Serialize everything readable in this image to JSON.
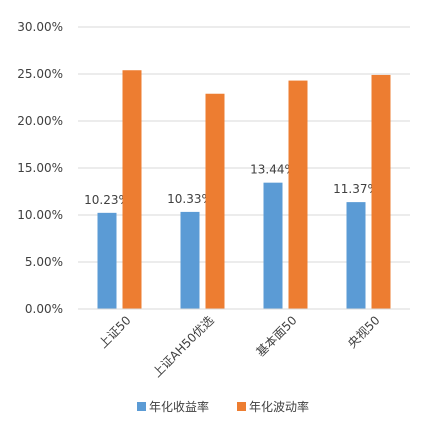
{
  "chart_data": {
    "type": "bar",
    "categories": [
      "上证50",
      "上证AH50优选",
      "基本面50",
      "央视50"
    ],
    "series": [
      {
        "name": "年化收益率",
        "values": [
          10.23,
          10.33,
          13.44,
          11.37
        ],
        "color": "#5B9BD5",
        "labels": [
          "10.23%",
          "10.33%",
          "13.44%",
          "11.37%"
        ]
      },
      {
        "name": "年化波动率",
        "values": [
          25.4,
          22.9,
          24.3,
          24.9
        ],
        "color": "#ED7D31"
      }
    ],
    "y_ticks": [
      "0.00%",
      "5.00%",
      "10.00%",
      "15.00%",
      "20.00%",
      "25.00%",
      "30.00%"
    ],
    "ylim": [
      0,
      30
    ],
    "grid": true,
    "legend": "bottom"
  }
}
